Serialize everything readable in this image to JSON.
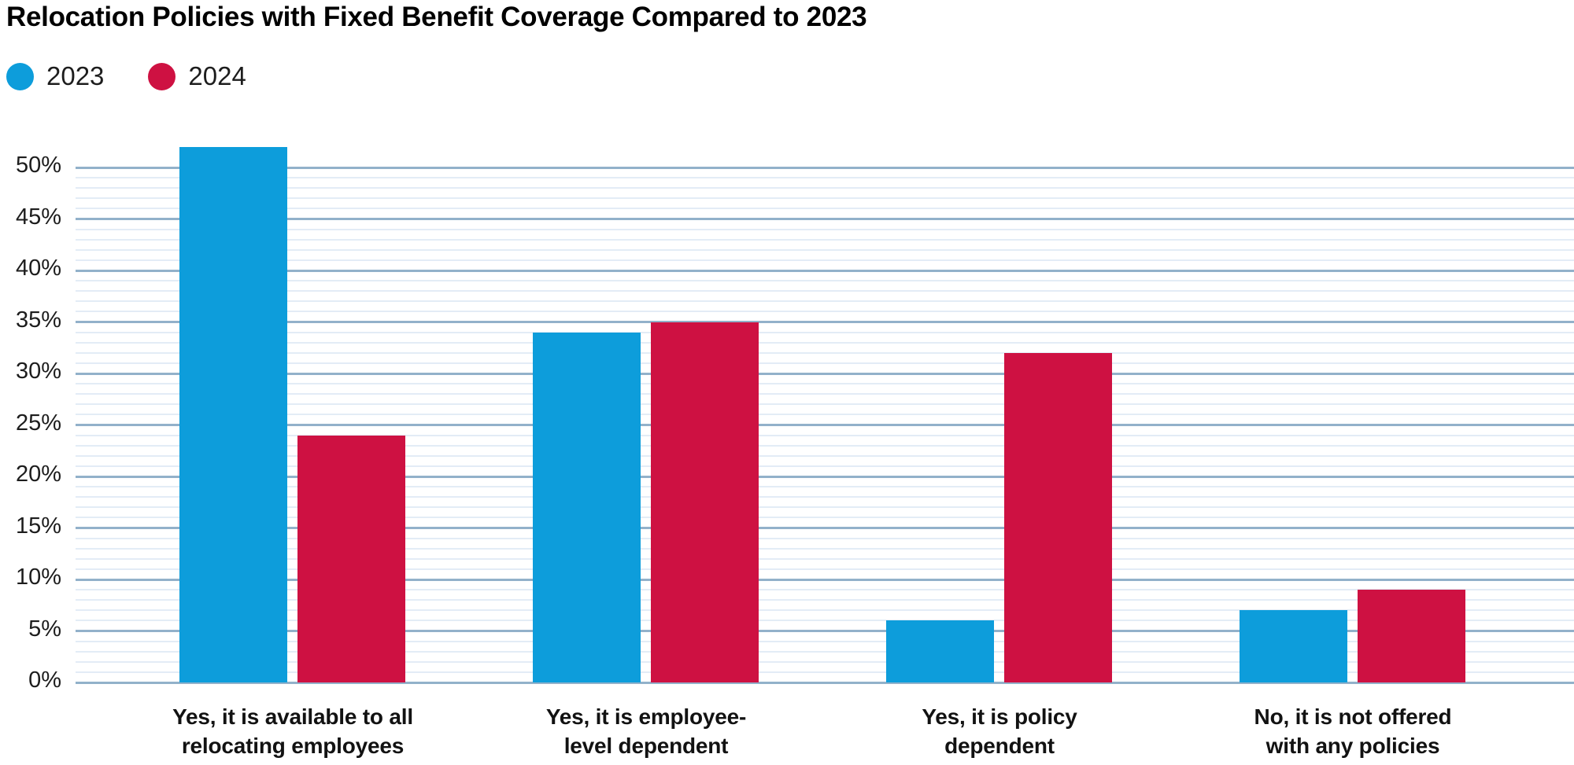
{
  "title": "Relocation Policies with Fixed Benefit Coverage Compared to 2023",
  "legend": [
    {
      "label": "2023",
      "color": "#0d9ddb"
    },
    {
      "label": "2024",
      "color": "#ce1142"
    }
  ],
  "colors": {
    "series_2023": "#0d9ddb",
    "series_2024": "#ce1142",
    "major_gridline": "#92b1ca",
    "minor_gridline": "#e3ecf6",
    "text": "#1d1d1d"
  },
  "chart_data": {
    "type": "bar",
    "title": "Relocation Policies with Fixed Benefit Coverage Compared to 2023",
    "categories": [
      "Yes, it is available to all\nrelocating employees",
      "Yes, it is employee-\nlevel dependent",
      "Yes, it is policy\ndependent",
      "No, it is not offered\nwith any policies"
    ],
    "series": [
      {
        "name": "2023",
        "color": "#0d9ddb",
        "values": [
          52,
          34,
          6,
          7
        ]
      },
      {
        "name": "2024",
        "color": "#ce1142",
        "values": [
          24,
          35,
          32,
          9
        ]
      }
    ],
    "xlabel": "",
    "ylabel": "",
    "y_ticks": [
      "0%",
      "5%",
      "10%",
      "15%",
      "20%",
      "25%",
      "30%",
      "35%",
      "40%",
      "45%",
      "50%"
    ],
    "ylim": [
      0,
      52
    ],
    "grid": {
      "minor_step_pct": 1,
      "major_step_pct": 5,
      "major_color": "#92b1ca",
      "minor_color": "#e3ecf6"
    },
    "legend_position": "top-left",
    "legend_entries": [
      "2023",
      "2024"
    ]
  }
}
